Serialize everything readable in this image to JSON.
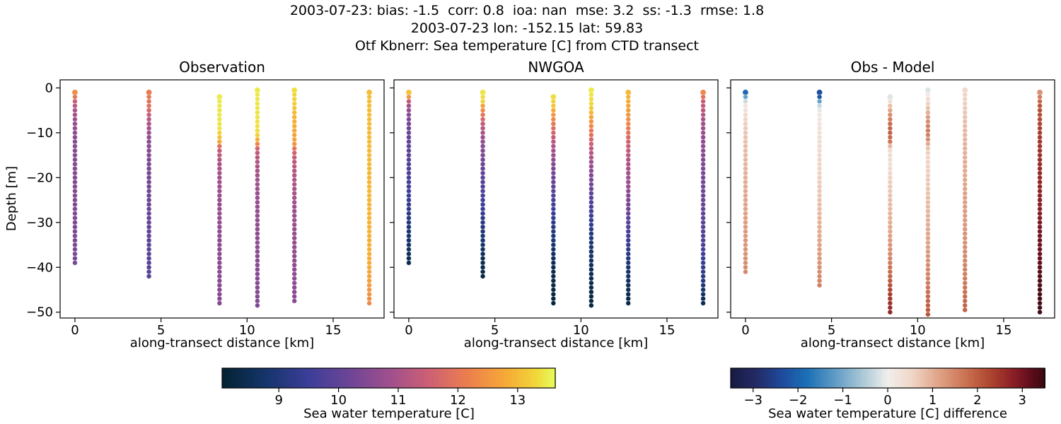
{
  "chart_data": {
    "type": "scatter",
    "header": {
      "line1": "2003-07-23: bias: -1.5  corr: 0.8  ioa: nan  mse: 3.2  ss: -1.3  rmse: 1.8",
      "line2": "2003-07-23 lon: -152.15 lat: 59.83",
      "line3": "Otf Kbnerr: Sea temperature [C] from CTD transect"
    },
    "xlabel": "along-transect distance [km]",
    "ylabel": "Depth [m]",
    "xlim": [
      -0.86,
      17.96
    ],
    "ylim_top": 1.8,
    "ylim_bottom": -51.3,
    "x_ticks": {
      "values": [
        0,
        5,
        10,
        15
      ],
      "labels": [
        "0",
        "5",
        "10",
        "15"
      ]
    },
    "y_ticks": {
      "values": [
        0,
        -10,
        -20,
        -30,
        -40,
        -50
      ],
      "labels": [
        "0",
        "−10",
        "−20",
        "−30",
        "−40",
        "−50"
      ]
    },
    "grid": false,
    "colormaps": {
      "thermal": [
        [
          0,
          "#042333"
        ],
        [
          0.13,
          "#15356c"
        ],
        [
          0.26,
          "#3c3e99"
        ],
        [
          0.38,
          "#6c4596"
        ],
        [
          0.5,
          "#9e4f8e"
        ],
        [
          0.62,
          "#cc5f74"
        ],
        [
          0.74,
          "#ec7f4d"
        ],
        [
          0.86,
          "#f6ac36"
        ],
        [
          0.95,
          "#f0d93b"
        ],
        [
          1,
          "#e7fa5a"
        ]
      ],
      "balance": [
        [
          0,
          "#181c43"
        ],
        [
          0.08,
          "#232a66"
        ],
        [
          0.16,
          "#1e4b9c"
        ],
        [
          0.24,
          "#1a6fb5"
        ],
        [
          0.33,
          "#5e9bc5"
        ],
        [
          0.42,
          "#abc8d7"
        ],
        [
          0.5,
          "#f1efed"
        ],
        [
          0.58,
          "#f0d5c6"
        ],
        [
          0.66,
          "#e0a58a"
        ],
        [
          0.75,
          "#ca7251"
        ],
        [
          0.83,
          "#ad4430"
        ],
        [
          0.9,
          "#8c1f26"
        ],
        [
          0.96,
          "#5e0c1b"
        ],
        [
          1,
          "#3c0912"
        ]
      ]
    },
    "panels": [
      {
        "title": "Observation",
        "colormap": "thermal",
        "vmin": 8.05,
        "vmax": 13.63,
        "show_y_tick_labels": true,
        "stations": [
          {
            "x": 0,
            "profile": [
              [
                -1,
                12.4
              ],
              [
                -2,
                12.0
              ],
              [
                -3,
                11.5
              ],
              [
                -5,
                11.0
              ],
              [
                -8,
                10.75
              ],
              [
                -12,
                10.55
              ],
              [
                -25,
                10.45
              ],
              [
                -39,
                10.35
              ]
            ]
          },
          {
            "x": 4.3,
            "profile": [
              [
                -1,
                12.1
              ],
              [
                -4,
                11.9
              ],
              [
                -7,
                11.2
              ],
              [
                -12,
                10.6
              ],
              [
                -20,
                10.3
              ],
              [
                -30,
                10.05
              ],
              [
                -42,
                9.85
              ]
            ]
          },
          {
            "x": 8.4,
            "profile": [
              [
                -2,
                13.5
              ],
              [
                -9,
                13.45
              ],
              [
                -11,
                13.1
              ],
              [
                -12,
                12.8
              ],
              [
                -13,
                11.9
              ],
              [
                -14,
                11.4
              ],
              [
                -17,
                11.05
              ],
              [
                -22,
                10.85
              ],
              [
                -35,
                10.65
              ],
              [
                -48,
                10.5
              ]
            ]
          },
          {
            "x": 10.6,
            "profile": [
              [
                -0.5,
                13.5
              ],
              [
                -10,
                13.4
              ],
              [
                -11,
                13.1
              ],
              [
                -12,
                12.7
              ],
              [
                -13,
                11.9
              ],
              [
                -14,
                11.35
              ],
              [
                -18,
                11.0
              ],
              [
                -25,
                10.75
              ],
              [
                -40,
                10.55
              ],
              [
                -49,
                10.45
              ]
            ]
          },
          {
            "x": 12.75,
            "profile": [
              [
                -0.5,
                13.4
              ],
              [
                -4,
                13.2
              ],
              [
                -6,
                12.95
              ],
              [
                -12,
                12.7
              ],
              [
                -13,
                12.3
              ],
              [
                -14,
                11.7
              ],
              [
                -16,
                11.35
              ],
              [
                -20,
                11.1
              ],
              [
                -28,
                10.8
              ],
              [
                -40,
                10.65
              ],
              [
                -48,
                10.55
              ]
            ]
          },
          {
            "x": 17.1,
            "profile": [
              [
                -1,
                13.05
              ],
              [
                -15,
                13.0
              ],
              [
                -30,
                12.95
              ],
              [
                -40,
                12.85
              ],
              [
                -44,
                12.6
              ],
              [
                -48,
                12.35
              ]
            ]
          }
        ]
      },
      {
        "title": "NWGOA",
        "colormap": "thermal",
        "vmin": 8.05,
        "vmax": 13.63,
        "show_y_tick_labels": false,
        "stations": [
          {
            "x": 0,
            "profile": [
              [
                -1,
                13.1
              ],
              [
                -2,
                12.5
              ],
              [
                -3,
                11.4
              ],
              [
                -4,
                10.9
              ],
              [
                -6,
                10.5
              ],
              [
                -10,
                10.1
              ],
              [
                -16,
                9.85
              ],
              [
                -22,
                9.6
              ],
              [
                -28,
                9.2
              ],
              [
                -33,
                8.8
              ],
              [
                -39,
                8.4
              ]
            ]
          },
          {
            "x": 4.3,
            "profile": [
              [
                -1,
                13.45
              ],
              [
                -3,
                13.3
              ],
              [
                -4,
                12.7
              ],
              [
                -6,
                12.0
              ],
              [
                -8,
                11.35
              ],
              [
                -12,
                10.65
              ],
              [
                -18,
                10.1
              ],
              [
                -25,
                9.6
              ],
              [
                -32,
                9.0
              ],
              [
                -38,
                8.5
              ],
              [
                -42,
                8.3
              ]
            ]
          },
          {
            "x": 8.4,
            "profile": [
              [
                -2,
                13.4
              ],
              [
                -4,
                13.15
              ],
              [
                -5,
                12.8
              ],
              [
                -8,
                12.05
              ],
              [
                -12,
                11.2
              ],
              [
                -18,
                10.4
              ],
              [
                -25,
                9.7
              ],
              [
                -32,
                9.05
              ],
              [
                -38,
                8.55
              ],
              [
                -43,
                8.3
              ],
              [
                -48,
                8.2
              ]
            ]
          },
          {
            "x": 10.6,
            "profile": [
              [
                -0.5,
                13.5
              ],
              [
                -4,
                13.3
              ],
              [
                -6,
                12.85
              ],
              [
                -9,
                12.2
              ],
              [
                -13,
                11.4
              ],
              [
                -20,
                10.4
              ],
              [
                -28,
                9.5
              ],
              [
                -35,
                8.85
              ],
              [
                -42,
                8.4
              ],
              [
                -49,
                8.2
              ]
            ]
          },
          {
            "x": 12.75,
            "profile": [
              [
                -1,
                13.0
              ],
              [
                -4,
                12.75
              ],
              [
                -8,
                12.3
              ],
              [
                -12,
                11.6
              ],
              [
                -16,
                11.1
              ],
              [
                -22,
                10.75
              ],
              [
                -30,
                9.9
              ],
              [
                -38,
                9.05
              ],
              [
                -44,
                8.5
              ],
              [
                -48,
                8.3
              ]
            ]
          },
          {
            "x": 17.1,
            "profile": [
              [
                -1,
                12.3
              ],
              [
                -3,
                11.5
              ],
              [
                -8,
                10.9
              ],
              [
                -15,
                10.5
              ],
              [
                -25,
                10.15
              ],
              [
                -35,
                9.7
              ],
              [
                -42,
                9.2
              ],
              [
                -46,
                8.7
              ],
              [
                -48,
                8.45
              ]
            ]
          }
        ]
      },
      {
        "title": "Obs - Model",
        "colormap": "balance",
        "vmin": -3.5,
        "vmax": 3.5,
        "show_y_tick_labels": false,
        "stations": [
          {
            "x": 0,
            "profile": [
              [
                -1,
                -1.9
              ],
              [
                -2,
                -1.1
              ],
              [
                -3,
                -0.3
              ],
              [
                -4,
                0.2
              ],
              [
                -6,
                0.5
              ],
              [
                -10,
                0.75
              ],
              [
                -20,
                1.0
              ],
              [
                -30,
                1.2
              ],
              [
                -38,
                1.35
              ],
              [
                -41,
                1.45
              ]
            ]
          },
          {
            "x": 4.3,
            "profile": [
              [
                -1,
                -2.35
              ],
              [
                -2,
                -2.2
              ],
              [
                -3,
                -1.1
              ],
              [
                -4,
                -0.35
              ],
              [
                -6,
                0.15
              ],
              [
                -10,
                0.35
              ],
              [
                -18,
                0.55
              ],
              [
                -26,
                0.8
              ],
              [
                -34,
                1.1
              ],
              [
                -40,
                1.35
              ],
              [
                -44,
                1.55
              ]
            ]
          },
          {
            "x": 8.4,
            "profile": [
              [
                -2,
                -0.15
              ],
              [
                -3,
                0.35
              ],
              [
                -4,
                0.8
              ],
              [
                -6,
                1.4
              ],
              [
                -8,
                1.8
              ],
              [
                -10,
                1.95
              ],
              [
                -12,
                1.7
              ],
              [
                -13,
                0.9
              ],
              [
                -14,
                0.45
              ],
              [
                -17,
                0.35
              ],
              [
                -20,
                0.6
              ],
              [
                -26,
                0.85
              ],
              [
                -32,
                1.1
              ],
              [
                -38,
                1.5
              ],
              [
                -42,
                1.9
              ],
              [
                -46,
                2.4
              ],
              [
                -50,
                2.7
              ]
            ]
          },
          {
            "x": 10.6,
            "profile": [
              [
                -0.5,
                -0.15
              ],
              [
                -2,
                0.3
              ],
              [
                -4,
                0.7
              ],
              [
                -6,
                1.1
              ],
              [
                -8,
                1.5
              ],
              [
                -10,
                1.6
              ],
              [
                -12,
                1.3
              ],
              [
                -13,
                0.8
              ],
              [
                -15,
                0.55
              ],
              [
                -18,
                0.6
              ],
              [
                -24,
                0.8
              ],
              [
                -30,
                1.0
              ],
              [
                -36,
                1.2
              ],
              [
                -42,
                1.5
              ],
              [
                -46,
                1.8
              ],
              [
                -50.5,
                2.1
              ]
            ]
          },
          {
            "x": 12.75,
            "profile": [
              [
                -0.5,
                0.5
              ],
              [
                -3,
                0.6
              ],
              [
                -6,
                0.75
              ],
              [
                -10,
                0.9
              ],
              [
                -16,
                1.0
              ],
              [
                -24,
                1.15
              ],
              [
                -30,
                1.25
              ],
              [
                -36,
                1.4
              ],
              [
                -42,
                1.6
              ],
              [
                -46,
                1.8
              ],
              [
                -50,
                1.95
              ]
            ]
          },
          {
            "x": 17.1,
            "profile": [
              [
                -1,
                1.35
              ],
              [
                -2,
                1.6
              ],
              [
                -4,
                2.1
              ],
              [
                -8,
                2.3
              ],
              [
                -12,
                2.5
              ],
              [
                -18,
                2.65
              ],
              [
                -25,
                2.8
              ],
              [
                -32,
                3.0
              ],
              [
                -38,
                3.15
              ],
              [
                -42,
                3.3
              ],
              [
                -46,
                3.4
              ],
              [
                -50,
                3.45
              ]
            ]
          }
        ]
      }
    ],
    "colorbars": [
      {
        "label": "Sea water temperature [C]",
        "colormap": "thermal",
        "vmin": 8.05,
        "vmax": 13.63,
        "orientation": "horizontal",
        "ticks": [
          9,
          10,
          11,
          12,
          13
        ],
        "tick_labels": [
          "9",
          "10",
          "11",
          "12",
          "13"
        ]
      },
      {
        "label": "Sea water temperature [C] difference",
        "colormap": "balance",
        "vmin": -3.5,
        "vmax": 3.5,
        "orientation": "horizontal",
        "ticks": [
          -3,
          -2,
          -1,
          0,
          1,
          2,
          3
        ],
        "tick_labels": [
          "−3",
          "−2",
          "−1",
          "0",
          "1",
          "2",
          "3"
        ]
      }
    ],
    "colors": {
      "background": "#ffffff",
      "text": "#000000",
      "spine": "#000000"
    }
  }
}
